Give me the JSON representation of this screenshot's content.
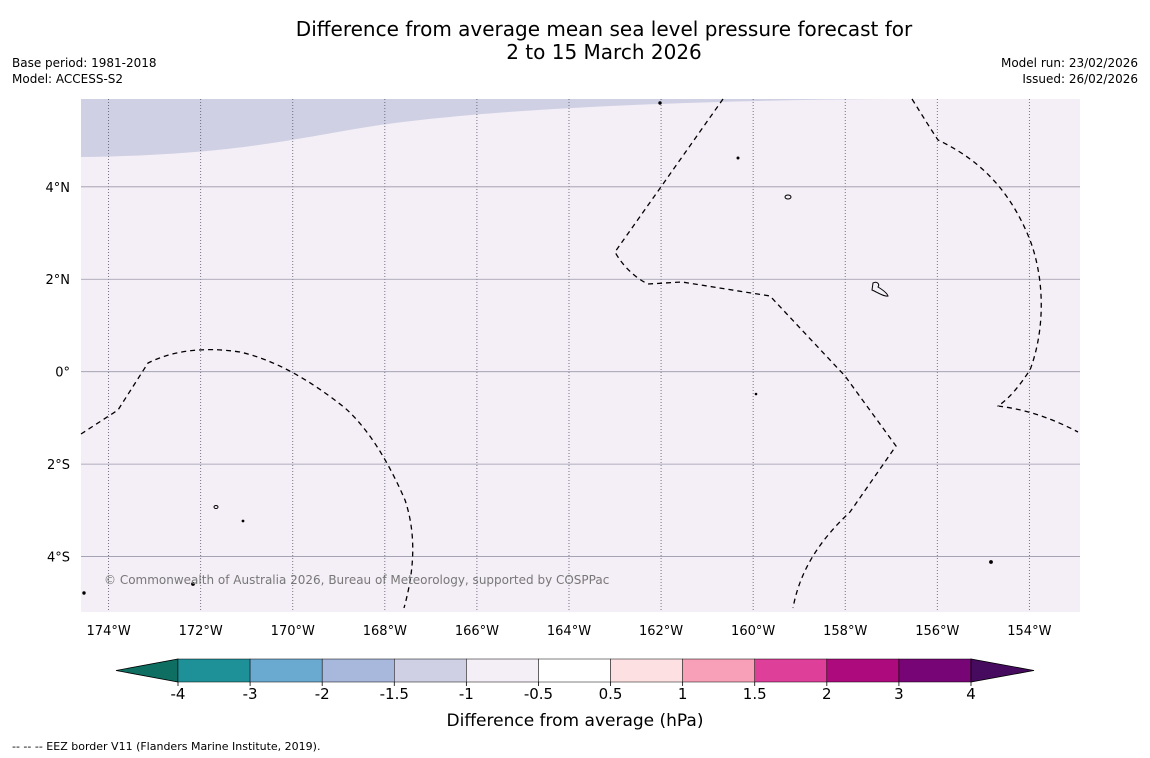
{
  "title": {
    "line1": "Difference from average mean sea level pressure forecast for",
    "line2": "2 to 15 March 2026"
  },
  "meta": {
    "base_period": "Base period: 1981-2018",
    "model": "Model: ACCESS-S2",
    "model_run": "Model run: 23/02/2026",
    "issued": "Issued: 26/02/2026"
  },
  "map": {
    "lon_range": [
      -174.6,
      -152.9
    ],
    "lat_range": [
      -5.2,
      5.9
    ],
    "lon_ticks": [
      {
        "value": -174,
        "label": "174°W"
      },
      {
        "value": -172,
        "label": "172°W"
      },
      {
        "value": -170,
        "label": "170°W"
      },
      {
        "value": -168,
        "label": "168°W"
      },
      {
        "value": -166,
        "label": "166°W"
      },
      {
        "value": -164,
        "label": "164°W"
      },
      {
        "value": -162,
        "label": "162°W"
      },
      {
        "value": -160,
        "label": "160°W"
      },
      {
        "value": -158,
        "label": "158°W"
      },
      {
        "value": -156,
        "label": "156°W"
      },
      {
        "value": -154,
        "label": "154°W"
      }
    ],
    "lat_ticks": [
      {
        "value": 4,
        "label": "4°N"
      },
      {
        "value": 2,
        "label": "2°N"
      },
      {
        "value": 0,
        "label": "0°"
      },
      {
        "value": -2,
        "label": "2°S"
      },
      {
        "value": -4,
        "label": "4°S"
      }
    ],
    "copyright": "© Commonwealth of Australia 2026, Bureau of Meteorology, supported by COSPPac"
  },
  "colorbar": {
    "label": "Difference from average (hPa)",
    "ticks": [
      "-4",
      "-3",
      "-2",
      "-1.5",
      "-1",
      "-0.5",
      "0.5",
      "1",
      "1.5",
      "2",
      "3",
      "4"
    ],
    "colors": [
      "#0e6e62",
      "#1e9198",
      "#6aaad0",
      "#a8b8dc",
      "#cfd0e4",
      "#f4eef6",
      "#ffffff",
      "#fde0e2",
      "#f7a0b8",
      "#de3f99",
      "#ad0a7e",
      "#770575",
      "#460b5e"
    ]
  },
  "footer": "--  --  -- EEZ border V11 (Flanders Marine Institute, 2019)."
}
